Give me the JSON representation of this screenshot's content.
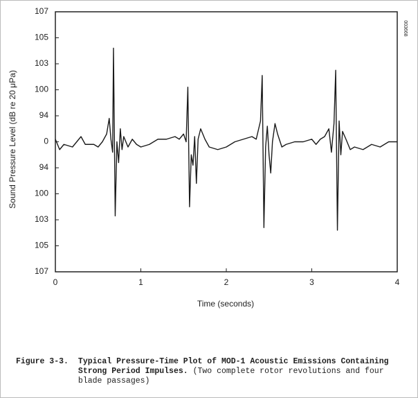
{
  "chart_data": {
    "type": "line",
    "xlabel": "Time (seconds)",
    "ylabel": "Sound Pressure Level (dB re 20 μPa)",
    "stamp": "003668",
    "xlim": [
      0,
      4
    ],
    "xticks": [
      0,
      1,
      2,
      3,
      4
    ],
    "ylim": [
      -5,
      5
    ],
    "yticks": [
      {
        "value": 5,
        "label": "107"
      },
      {
        "value": 4,
        "label": "105"
      },
      {
        "value": 3,
        "label": "103"
      },
      {
        "value": 2,
        "label": "100"
      },
      {
        "value": 1,
        "label": "94"
      },
      0,
      {
        "value": -1,
        "label": "94"
      },
      {
        "value": -2,
        "label": "100"
      },
      {
        "value": -3,
        "label": "103"
      },
      {
        "value": -4,
        "label": "105"
      },
      {
        "value": -5,
        "label": "107"
      }
    ],
    "color": "#1a1a1a",
    "x": [
      0,
      0.05,
      0.1,
      0.2,
      0.3,
      0.35,
      0.45,
      0.5,
      0.55,
      0.6,
      0.63,
      0.65,
      0.67,
      0.68,
      0.7,
      0.72,
      0.74,
      0.76,
      0.78,
      0.8,
      0.85,
      0.9,
      0.95,
      1.0,
      1.1,
      1.2,
      1.3,
      1.4,
      1.45,
      1.5,
      1.53,
      1.55,
      1.57,
      1.59,
      1.61,
      1.63,
      1.65,
      1.67,
      1.7,
      1.75,
      1.8,
      1.9,
      2.0,
      2.1,
      2.2,
      2.3,
      2.35,
      2.4,
      2.42,
      2.44,
      2.46,
      2.48,
      2.5,
      2.52,
      2.54,
      2.57,
      2.6,
      2.65,
      2.7,
      2.8,
      2.9,
      3.0,
      3.05,
      3.1,
      3.15,
      3.2,
      3.23,
      3.26,
      3.28,
      3.3,
      3.32,
      3.34,
      3.36,
      3.4,
      3.45,
      3.5,
      3.6,
      3.7,
      3.8,
      3.9,
      4.0
    ],
    "values": [
      0.1,
      -0.3,
      -0.1,
      -0.2,
      0.2,
      -0.1,
      -0.1,
      -0.2,
      0.0,
      0.3,
      0.9,
      0.1,
      -0.4,
      3.6,
      -2.85,
      0.0,
      -0.8,
      0.5,
      -0.3,
      0.2,
      -0.2,
      0.1,
      -0.1,
      -0.2,
      -0.1,
      0.1,
      0.1,
      0.2,
      0.1,
      0.3,
      0.0,
      2.1,
      -2.5,
      -0.5,
      -0.9,
      0.2,
      -1.6,
      0.1,
      0.5,
      0.1,
      -0.2,
      -0.3,
      -0.2,
      0.0,
      0.1,
      0.2,
      0.1,
      0.8,
      2.55,
      -3.3,
      -0.2,
      0.6,
      -0.5,
      -1.2,
      0.0,
      0.7,
      0.3,
      -0.2,
      -0.1,
      0.0,
      0.0,
      0.1,
      -0.1,
      0.1,
      0.2,
      0.5,
      -0.4,
      0.7,
      2.75,
      -3.4,
      0.8,
      -0.5,
      0.4,
      0.1,
      -0.3,
      -0.2,
      -0.3,
      -0.1,
      -0.2,
      0.0,
      0.0
    ],
    "caption": {
      "label": "Figure 3-3.",
      "title": "Typical Pressure-Time Plot of MOD-1 Acoustic Emissions Containing Strong Period Impulses.",
      "note": "(Two complete rotor revolutions and four blade passages)"
    }
  }
}
